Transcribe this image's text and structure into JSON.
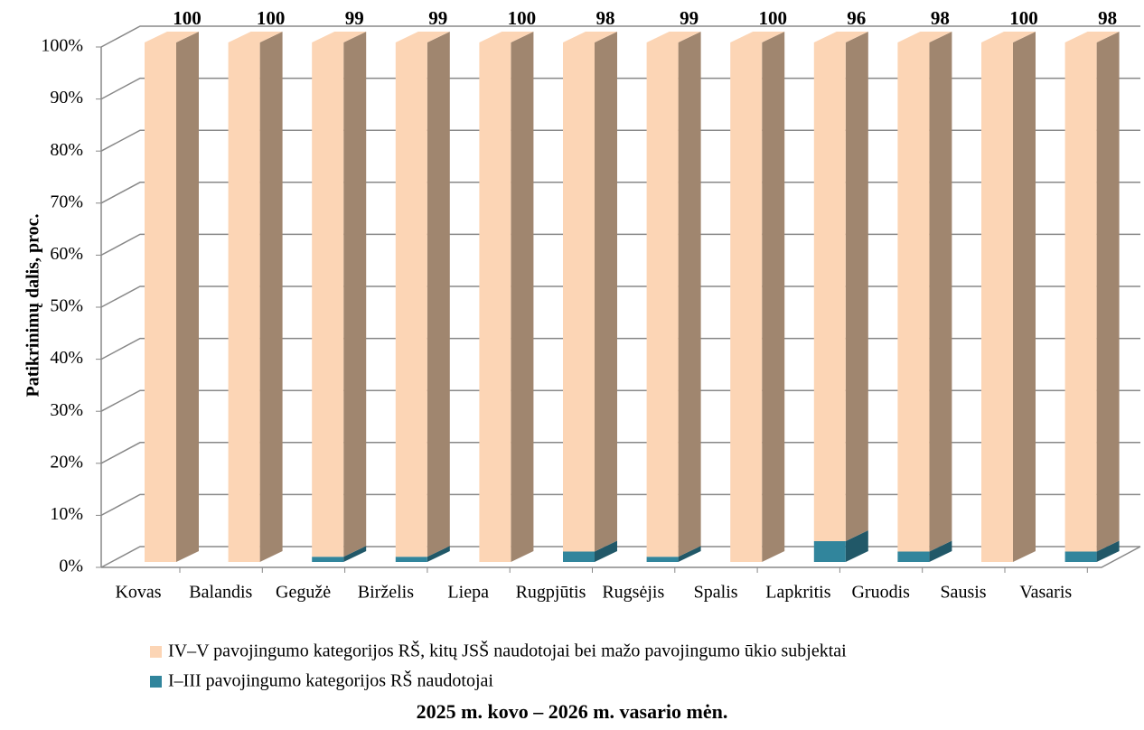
{
  "chart_data": {
    "type": "bar",
    "stacked": true,
    "title": "2025 m. kovo – 2026 m. vasario mėn.",
    "y_label": "Patikrinimų dalis, proc.",
    "categories": [
      "Kovas",
      "Balandis",
      "Gegužė",
      "Birželis",
      "Liepa",
      "Rugpjūtis",
      "Rugsėjis",
      "Spalis",
      "Lapkritis",
      "Gruodis",
      "Sausis",
      "Vasaris"
    ],
    "series": [
      {
        "name": "IV–V pavojingumo kategorijos RŠ, kitų JSŠ naudotojai bei mažo pavojingumo ūkio subjektai",
        "color": "#fcd5b5",
        "side_color": "#a0866f",
        "values": [
          100,
          100,
          99,
          99,
          100,
          98,
          99,
          100,
          96,
          98,
          100,
          98
        ]
      },
      {
        "name": "I–III pavojingumo kategorijos RŠ naudotojai",
        "color": "#31859c",
        "side_color": "#215868",
        "values": [
          0,
          0,
          1,
          1,
          0,
          2,
          1,
          0,
          4,
          2,
          0,
          2
        ]
      }
    ],
    "ylim": [
      0,
      100
    ],
    "yticks": [
      {
        "value": 0,
        "label": "0%"
      },
      {
        "value": 10,
        "label": "10%"
      },
      {
        "value": 20,
        "label": "20%"
      },
      {
        "value": 30,
        "label": "30%"
      },
      {
        "value": 40,
        "label": "40%"
      },
      {
        "value": 50,
        "label": "50%"
      },
      {
        "value": 60,
        "label": "60%"
      },
      {
        "value": 70,
        "label": "70%"
      },
      {
        "value": 80,
        "label": "80%"
      },
      {
        "value": 90,
        "label": "90%"
      },
      {
        "value": 100,
        "label": "100%"
      }
    ],
    "grid": true
  }
}
